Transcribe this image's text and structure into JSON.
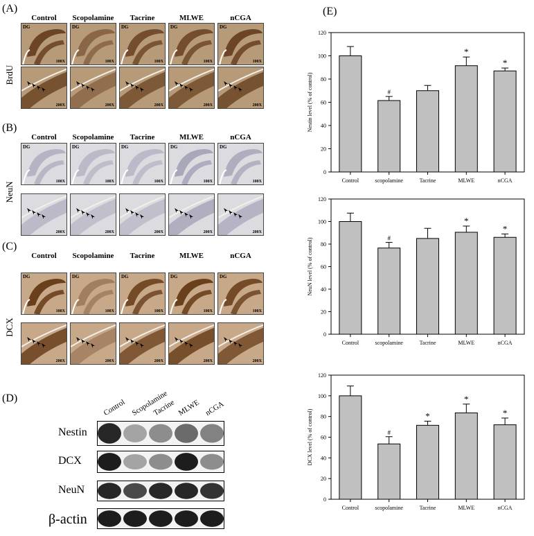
{
  "panel_letters": {
    "a": "(A)",
    "b": "(B)",
    "c": "(C)",
    "d": "(D)",
    "e": "(E)"
  },
  "groups": [
    "Control",
    "Scopolamine",
    "Tacrine",
    "MLWE",
    "nCGA"
  ],
  "row_labels": {
    "brdu": "BrdU",
    "neun": "NeuN",
    "dcx": "DCX"
  },
  "region_label": "DG",
  "mag_low": "100X",
  "mag_high": "200X",
  "western": {
    "lanes": [
      "Control",
      "Scopolamine",
      "Tacrine",
      "MLWE",
      "nCGA"
    ],
    "bands": [
      "Nestin",
      "DCX",
      "NeuN",
      "β-actin"
    ]
  },
  "colors": {
    "brdu_bg": "#b79a78",
    "brdu_stain": "#6b4525",
    "neun_bg": "#dcdbe0",
    "neun_stain": "#9c9ab0",
    "dcx_bg": "#c7a98a",
    "dcx_stain": "#6a3f1c",
    "bar_fill": "#c0c0c0"
  },
  "chart_data": [
    {
      "type": "bar",
      "categories": [
        "Control",
        "scopolamine",
        "Tacrine",
        "MLWE",
        "nCGA"
      ],
      "values": [
        100,
        61.5,
        70,
        91.5,
        87
      ],
      "errors": [
        8,
        3.5,
        4.5,
        7.5,
        2.5
      ],
      "annotations": [
        "",
        "#",
        "",
        "*",
        "*"
      ],
      "ylabel": "Nestin level (% of control)",
      "ylim": [
        0,
        120
      ],
      "yticks": [
        "0",
        "20",
        "40",
        "60",
        "80",
        "100",
        "120"
      ]
    },
    {
      "type": "bar",
      "categories": [
        "Control",
        "scopolamine",
        "Tacrine",
        "MLWE",
        "nCGA"
      ],
      "values": [
        100,
        76.5,
        85,
        90.5,
        86
      ],
      "errors": [
        7.5,
        5,
        9,
        5.5,
        3
      ],
      "annotations": [
        "",
        "#",
        "",
        "*",
        "*"
      ],
      "ylabel": "NeuN level (% of control)",
      "ylim": [
        0,
        120
      ],
      "yticks": [
        "0",
        "20",
        "40",
        "60",
        "80",
        "100",
        "120"
      ]
    },
    {
      "type": "bar",
      "categories": [
        "Control",
        "scopolamine",
        "Tacrine",
        "MLWE",
        "nCGA"
      ],
      "values": [
        100,
        53.5,
        71.5,
        83.5,
        72
      ],
      "errors": [
        9.5,
        7,
        4,
        8.5,
        6.5
      ],
      "annotations": [
        "",
        "#",
        "*",
        "*",
        "*"
      ],
      "ylabel": "DCX level (% of control)",
      "ylim": [
        0,
        120
      ],
      "yticks": [
        "0",
        "20",
        "40",
        "60",
        "80",
        "100",
        "120"
      ]
    }
  ]
}
